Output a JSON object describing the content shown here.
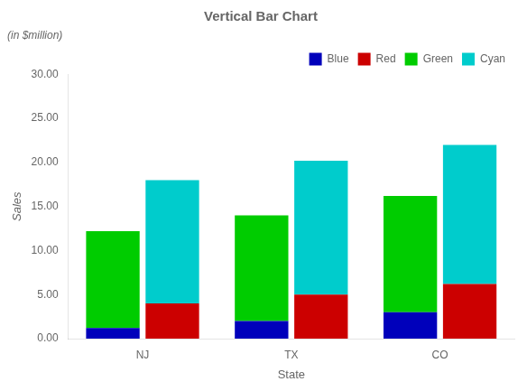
{
  "chart_data": {
    "type": "bar",
    "title": "Vertical Bar Chart",
    "xlabel": "State",
    "ylabel": "Sales",
    "annotations": [
      "(in $million)"
    ],
    "categories": [
      "NJ",
      "TX",
      "CO"
    ],
    "series": [
      {
        "name": "Blue",
        "color": "#0000bb",
        "values": [
          1.2,
          2.0,
          3.0
        ]
      },
      {
        "name": "Red",
        "color": "#cc0000",
        "values": [
          4.0,
          5.0,
          6.2
        ]
      },
      {
        "name": "Green",
        "color": "#00cc00",
        "values": [
          11.0,
          12.0,
          13.2
        ]
      },
      {
        "name": "Cyan",
        "color": "#00cccc",
        "values": [
          14.0,
          15.2,
          15.8
        ]
      }
    ],
    "stacked": [
      [
        "Blue",
        "Green"
      ],
      [
        "Red",
        "Cyan"
      ]
    ],
    "ylim": [
      0,
      30
    ],
    "yticks": [
      {
        "value": 0.0,
        "label": "0.00"
      },
      {
        "value": 5.0,
        "label": "5.00"
      },
      {
        "value": 10.0,
        "label": "10.00"
      },
      {
        "value": 15.0,
        "label": "15.00"
      },
      {
        "value": 20.0,
        "label": "20.00"
      },
      {
        "value": 25.0,
        "label": "25.00"
      },
      {
        "value": 30.0,
        "label": "30.00"
      }
    ],
    "grid": false,
    "legend": "upper right"
  }
}
